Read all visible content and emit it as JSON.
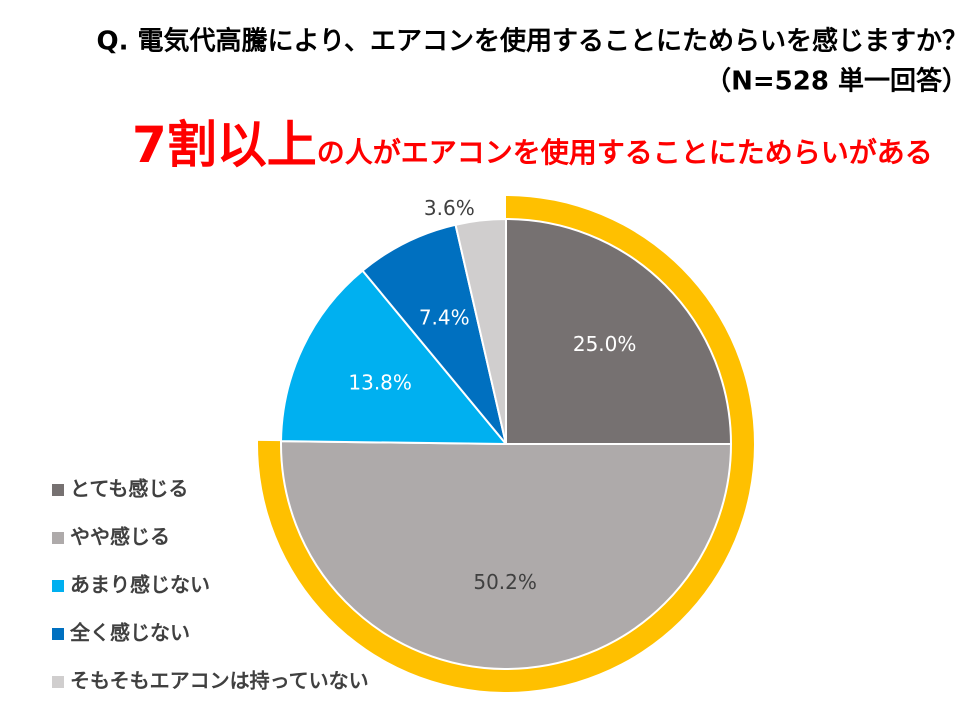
{
  "chart_data": {
    "type": "pie",
    "title": "Q.  電気代高騰により、エアコンを使用することにためらいを感じますか？",
    "subtitle": "（N=528  単一回答）",
    "headline_emphasis": "7割以上",
    "headline": "の人がエアコンを使用することにためらいがある",
    "categories": [
      "とても感じる",
      "やや感じる",
      "あまり感じない",
      "全く感じない",
      "そもそもエアコンは持っていない"
    ],
    "values": [
      25.0,
      50.2,
      13.8,
      7.4,
      3.6
    ],
    "value_labels": [
      "25.0%",
      "50.2%",
      "13.8%",
      "7.4%",
      "3.6%"
    ],
    "colors": [
      "#767171",
      "#aeaaaa",
      "#00b0f0",
      "#0070c0",
      "#d0cece"
    ],
    "highlight_color": "#ffc000",
    "legend": "lower left"
  }
}
